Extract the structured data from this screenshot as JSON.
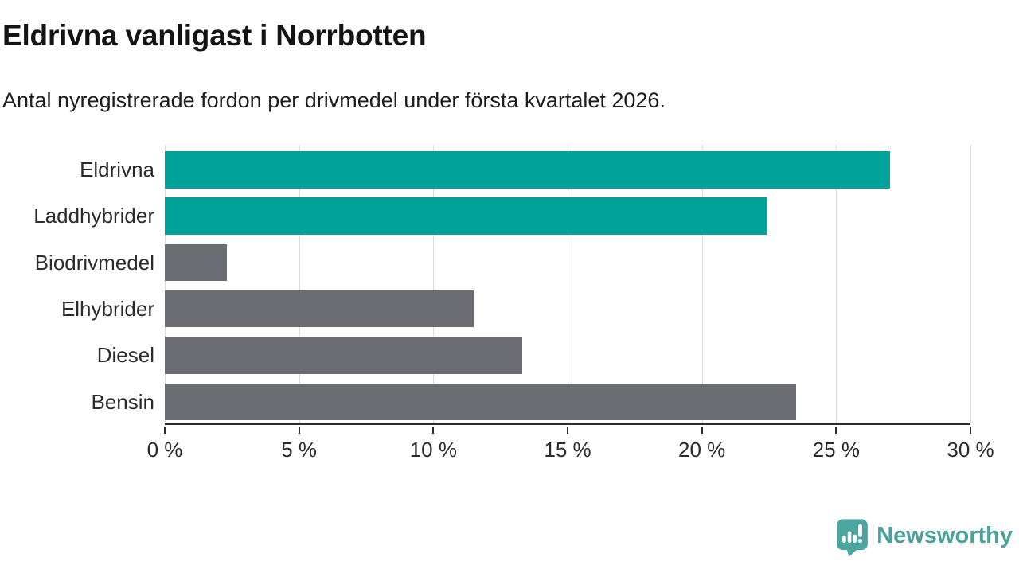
{
  "header": {
    "title": "Eldrivna vanligast i Norrbotten",
    "subtitle": "Antal nyregistrerade fordon per drivmedel under första kvartalet 2026."
  },
  "chart_data": {
    "type": "bar",
    "orientation": "horizontal",
    "title": "Eldrivna vanligast i Norrbotten",
    "subtitle": "Antal nyregistrerade fordon per drivmedel under första kvartalet 2026.",
    "categories": [
      "Eldrivna",
      "Laddhybrider",
      "Biodrivmedel",
      "Elhybrider",
      "Diesel",
      "Bensin"
    ],
    "values": [
      27.0,
      22.4,
      2.3,
      11.5,
      13.3,
      23.5
    ],
    "unit": "%",
    "xlim": [
      0,
      30
    ],
    "x_ticks": [
      0,
      5,
      10,
      15,
      20,
      25,
      30
    ],
    "x_tick_labels": [
      "0 %",
      "5 %",
      "10 %",
      "15 %",
      "20 %",
      "25 %",
      "30 %"
    ],
    "grid": "vertical-only",
    "legend": "none",
    "colors": {
      "highlight": "#00a29a",
      "base": "#6c6d72",
      "gridline": "#dcdcdc",
      "axis": "#2e2e2e"
    },
    "bar_colors": [
      "#00a29a",
      "#00a29a",
      "#6c6d72",
      "#6c6d72",
      "#6c6d72",
      "#6c6d72"
    ]
  },
  "footer": {
    "brand": "Newsworthy",
    "brand_color": "#4aa09b"
  }
}
